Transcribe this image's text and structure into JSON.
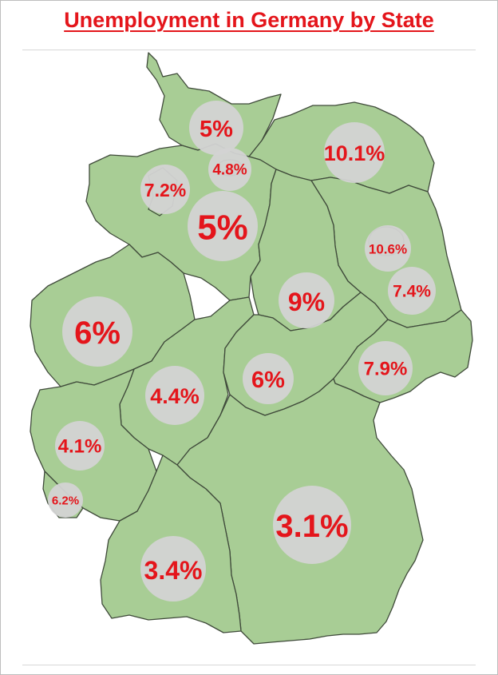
{
  "title": "Unemployment in Germany by State",
  "colors": {
    "title": "#e4151b",
    "label": "#e4151b",
    "land": "#a8cd95",
    "border": "#3f4a3a",
    "bubble": "#d3d3d3"
  },
  "states": [
    {
      "id": "schleswig-holstein",
      "rate": "5%"
    },
    {
      "id": "hamburg",
      "rate": "4.8%"
    },
    {
      "id": "mecklenburg-vorpommern",
      "rate": "10.1%"
    },
    {
      "id": "bremen",
      "rate": "7.2%"
    },
    {
      "id": "lower-saxony",
      "rate": "5%"
    },
    {
      "id": "berlin",
      "rate": "10.6%"
    },
    {
      "id": "brandenburg",
      "rate": "7.4%"
    },
    {
      "id": "saxony-anhalt",
      "rate": "9%"
    },
    {
      "id": "north-rhine-westphalia",
      "rate": "6%"
    },
    {
      "id": "hesse",
      "rate": "4.4%"
    },
    {
      "id": "thuringia",
      "rate": "6%"
    },
    {
      "id": "saxony",
      "rate": "7.9%"
    },
    {
      "id": "rhineland-palatinate",
      "rate": "4.1%"
    },
    {
      "id": "saarland",
      "rate": "6.2%"
    },
    {
      "id": "bavaria",
      "rate": "3.1%"
    },
    {
      "id": "baden-wurttemberg",
      "rate": "3.4%"
    }
  ]
}
